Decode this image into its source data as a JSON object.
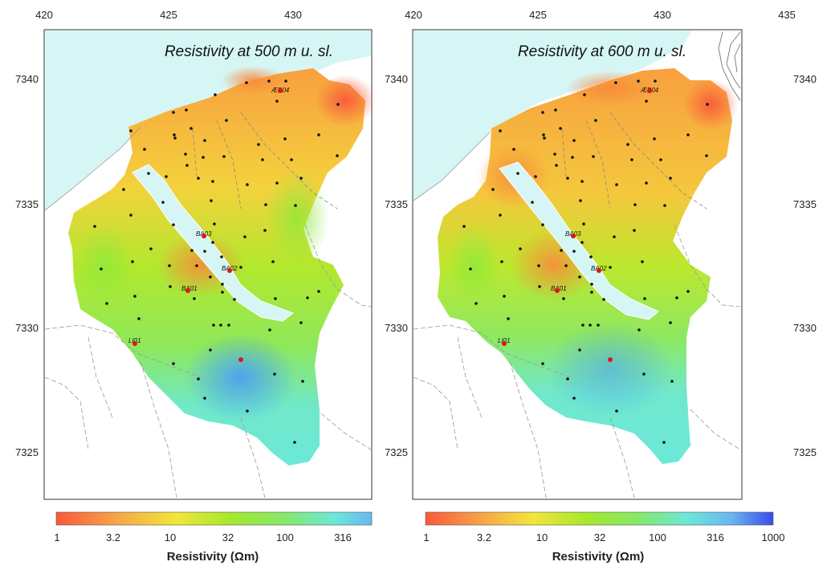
{
  "maps": [
    {
      "title": "Resistivity at 500 m u. sl.",
      "x_ticks": [
        "420",
        "425",
        "430"
      ],
      "y_ticks": [
        "7340",
        "7335",
        "7330",
        "7325"
      ],
      "colorbar": {
        "labels": [
          "1",
          "3.2",
          "10",
          "32",
          "100",
          "316"
        ],
        "title": "Resistivity (Ωm)"
      },
      "well_labels": [
        "ÆB04",
        "BA03",
        "BA02",
        "BA01",
        "LI01"
      ]
    },
    {
      "title": "Resistivity at 600 m u. sl.",
      "x_ticks": [
        "420",
        "425",
        "430",
        "435"
      ],
      "y_ticks": [
        "7340",
        "7335",
        "7330",
        "7325"
      ],
      "colorbar": {
        "labels": [
          "1",
          "3.2",
          "10",
          "32",
          "100",
          "316",
          "1000"
        ],
        "title": "Resistivity (Ωm)"
      },
      "well_labels": [
        "ÆB04",
        "BA03",
        "BA02",
        "BA01",
        "LI01"
      ]
    }
  ],
  "colors": {
    "sea": "#d6f6f6",
    "low": "#f95a3a",
    "orange": "#f8a040",
    "yellow": "#f2e63a",
    "green": "#9ee62e",
    "cyan": "#6ce8d8",
    "blue": "#3a78ee"
  }
}
